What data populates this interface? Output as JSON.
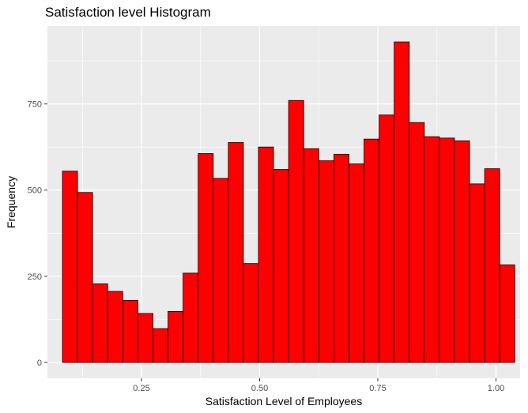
{
  "chart_data": {
    "type": "bar",
    "title": "Satisfaction level Histogram",
    "xlabel": "Satisfaction Level of Employees",
    "ylabel": "Frequency",
    "bins": 30,
    "bin_start": 0.0828,
    "bin_width": 0.0319,
    "values": [
      555,
      493,
      228,
      206,
      180,
      142,
      98,
      148,
      259,
      606,
      534,
      638,
      287,
      625,
      560,
      760,
      620,
      585,
      604,
      576,
      648,
      718,
      930,
      696,
      655,
      651,
      643,
      518,
      562,
      283
    ],
    "xlim": [
      0.051,
      1.051
    ],
    "ylim": [
      -46,
      976
    ],
    "x_ticks": [
      0.25,
      0.5,
      0.75,
      1.0
    ],
    "x_tick_labels": [
      "0.25",
      "0.50",
      "0.75",
      "1.00"
    ],
    "y_ticks": [
      0,
      250,
      500,
      750
    ],
    "y_tick_labels": [
      "0",
      "250",
      "500",
      "750"
    ],
    "bar_fill": "#ff0000",
    "bar_stroke": "#000000",
    "panel_background": "#ebebeb",
    "grid": true,
    "grid_color": "#ffffff"
  }
}
